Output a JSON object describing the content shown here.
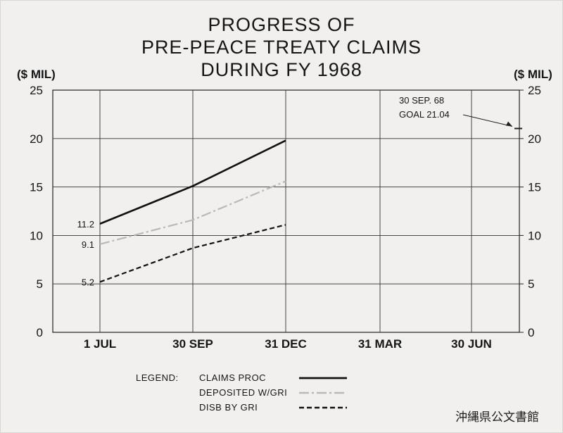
{
  "title": {
    "line1": "PROGRESS OF",
    "line2": "PRE-PEACE TREATY CLAIMS",
    "line3": "DURING FY 1968"
  },
  "units": {
    "left": "($ MIL)",
    "right": "($ MIL)"
  },
  "chart_data": {
    "type": "line",
    "title": "PROGRESS OF PRE-PEACE TREATY CLAIMS DURING FY 1968",
    "ylabel": "($ MIL)",
    "ylim": [
      0,
      25
    ],
    "yticks": [
      "0",
      "5",
      "10",
      "15",
      "20",
      "25"
    ],
    "categories": [
      "1 JUL",
      "30 SEP",
      "31 DEC",
      "31 MAR",
      "30 JUN"
    ],
    "grid": true,
    "series": [
      {
        "name": "CLAIMS PROC",
        "values": [
          11.2,
          15.1,
          19.8,
          null,
          null
        ],
        "color": "#111111",
        "style": "solid"
      },
      {
        "name": "DEPOSITED W/GRI",
        "values": [
          9.1,
          11.6,
          15.6,
          null,
          null
        ],
        "color": "#b8b8b8",
        "style": "dashdot"
      },
      {
        "name": "DISB BY GRI",
        "values": [
          5.2,
          8.7,
          11.1,
          null,
          null
        ],
        "color": "#111111",
        "style": "dashed"
      }
    ],
    "data_labels": [
      "11.2",
      "9.1",
      "5.2"
    ],
    "annotation": {
      "line1": "30 SEP. 68",
      "line2": "GOAL 21.04",
      "value": 21.04
    },
    "legend": {
      "heading": "LEGEND:",
      "placement": "bottom"
    }
  },
  "footer": {
    "archive_stamp": "沖縄県公文書館"
  }
}
